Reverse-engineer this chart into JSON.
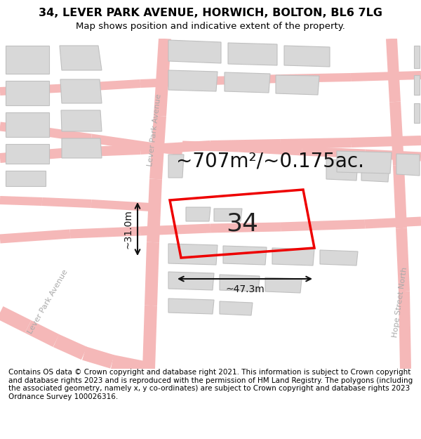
{
  "title_line1": "34, LEVER PARK AVENUE, HORWICH, BOLTON, BL6 7LG",
  "title_line2": "Map shows position and indicative extent of the property.",
  "area_label": "~707m²/~0.175ac.",
  "property_number": "34",
  "width_label": "~47.3m",
  "height_label": "~31.0m",
  "footer_text": "Contains OS data © Crown copyright and database right 2021. This information is subject to Crown copyright and database rights 2023 and is reproduced with the permission of HM Land Registry. The polygons (including the associated geometry, namely x, y co-ordinates) are subject to Crown copyright and database rights 2023 Ordnance Survey 100026316.",
  "map_bg": "#f8f8f8",
  "road_color": "#f5b8b8",
  "building_color": "#d8d8d8",
  "building_edge": "#c0c0c0",
  "property_edge": "#ee0000",
  "dim_line_color": "#111111",
  "street_label_color": "#aaaaaa",
  "title_fontsize": 11.5,
  "subtitle_fontsize": 9.5,
  "area_fontsize": 20,
  "number_fontsize": 26,
  "dim_fontsize": 10,
  "footer_fontsize": 7.5,
  "street_fontsize": 8
}
